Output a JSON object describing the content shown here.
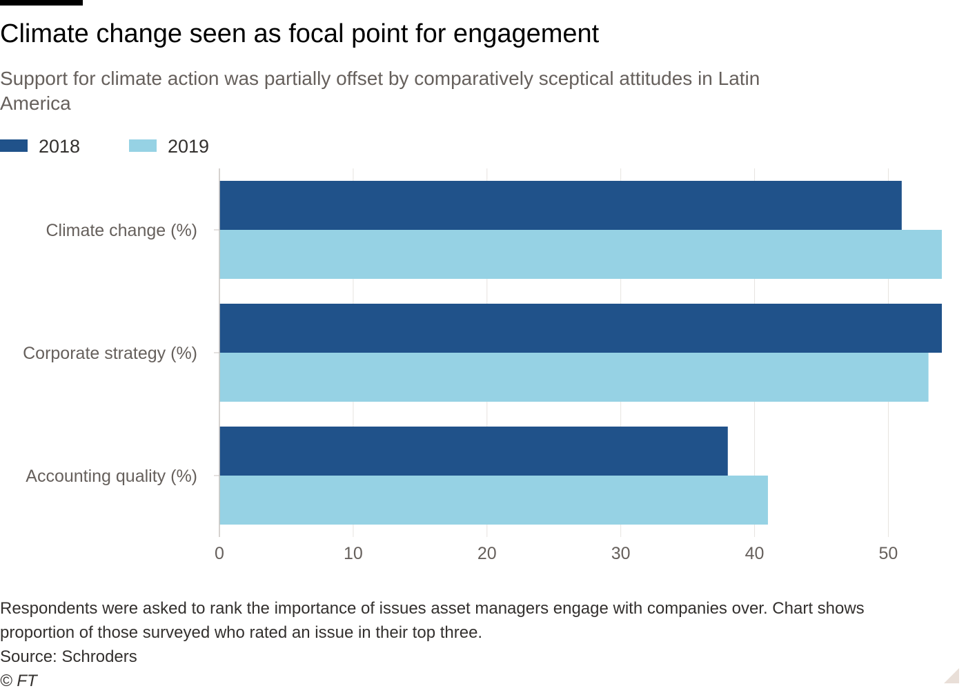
{
  "header": {
    "title": "Climate change seen as focal point for engagement",
    "subtitle": "Support for climate action was partially offset by comparatively sceptical attitudes in Latin America"
  },
  "legend": {
    "items": [
      {
        "label": "2018",
        "color": "#20528a"
      },
      {
        "label": "2019",
        "color": "#96d2e4"
      }
    ]
  },
  "chart_data": {
    "type": "bar",
    "orientation": "horizontal",
    "categories": [
      "Climate change (%)",
      "Corporate strategy (%)",
      "Accounting quality (%)"
    ],
    "series": [
      {
        "name": "2018",
        "color": "#20528a",
        "values": [
          51,
          54,
          38
        ]
      },
      {
        "name": "2019",
        "color": "#96d2e4",
        "values": [
          54,
          53,
          41
        ]
      }
    ],
    "xlim": [
      0,
      54
    ],
    "xticks": [
      0,
      10,
      20,
      30,
      40,
      50
    ],
    "grid": true,
    "legend_position": "top-left"
  },
  "footer": {
    "note_line1": "Respondents were asked to rank the importance of issues asset managers engage with companies over. Chart shows",
    "note_line2": "proportion of those surveyed who rated an issue in their top three.",
    "source": "Source: Schroders",
    "copyright": "© FT"
  }
}
